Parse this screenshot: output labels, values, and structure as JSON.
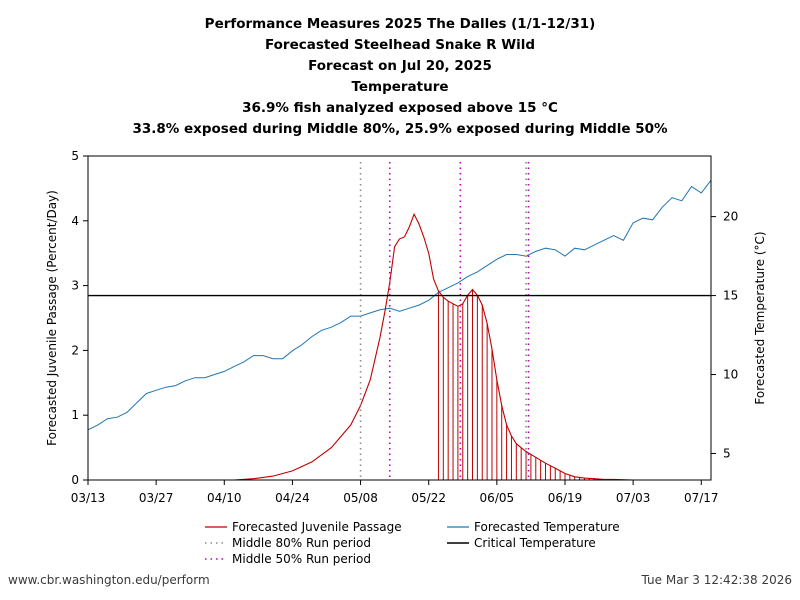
{
  "titles": {
    "line1": "Performance Measures 2025 The Dalles (1/1-12/31)",
    "line2": "Forecasted Steelhead Snake R Wild",
    "line3": "Forecast on Jul 20, 2025",
    "line4": "Temperature",
    "line5": "36.9% fish analyzed exposed above 15 °C",
    "line6": "33.8% exposed during Middle 80%, 25.9% exposed during Middle 50%"
  },
  "footer": {
    "left": "www.cbr.washington.edu/perform",
    "right": "Tue Mar  3 12:42:38 2026"
  },
  "legend": {
    "passage": "Forecasted Juvenile Passage",
    "temperature": "Forecasted Temperature",
    "mid80": "Middle 80% Run period",
    "critical": "Critical Temperature",
    "mid50": "Middle 50% Run period"
  },
  "colors": {
    "passage": "#c00000",
    "temperature": "#1f77b4",
    "mid80": "#8c8c8c",
    "mid50": "#c000c0",
    "critical": "#000000"
  },
  "chart_data": {
    "type": "line",
    "x_unit": "day of year 2025",
    "xlim": [
      72,
      200
    ],
    "x_ticks": [
      72,
      86,
      100,
      114,
      128,
      142,
      156,
      170,
      184,
      198
    ],
    "x_tick_labels": [
      "03/13",
      "03/27",
      "04/10",
      "04/24",
      "05/08",
      "05/22",
      "06/05",
      "06/19",
      "07/03",
      "07/17"
    ],
    "ylabel_left": "Forecasted Juvenile Passage (Percent/Day)",
    "ylim_left": [
      0,
      5
    ],
    "yticks_left": [
      0,
      1,
      2,
      3,
      4,
      5
    ],
    "ylabel_right": "Forecasted Temperature (°C)",
    "ylim_right": [
      3.32,
      23.84
    ],
    "yticks_right": [
      5,
      10,
      15,
      20
    ],
    "critical_temperature": 15,
    "mid80_period": [
      128,
      162
    ],
    "mid50_period": [
      134,
      160
    ],
    "mid80_x_marks": [
      128,
      162
    ],
    "mid50_x_marks": [
      134,
      148.5,
      162.5
    ],
    "legend_position": "bottom",
    "series": [
      {
        "name": "Forecasted Juvenile Passage",
        "axis": "left",
        "x": [
          102,
          106,
          110,
          114,
          118,
          122,
          126,
          128,
          130,
          132,
          133,
          134,
          135,
          136,
          137,
          138,
          139,
          140,
          141,
          142,
          143,
          144,
          145,
          146,
          147,
          148,
          149,
          150,
          151,
          152,
          153,
          154,
          155,
          156,
          157,
          158,
          159,
          160,
          162,
          164,
          166,
          168,
          170,
          172,
          174,
          176,
          178,
          180,
          184,
          188
        ],
        "values": [
          0.0,
          0.02,
          0.06,
          0.14,
          0.28,
          0.5,
          0.85,
          1.15,
          1.55,
          2.2,
          2.6,
          3.05,
          3.6,
          3.72,
          3.75,
          3.9,
          4.1,
          3.95,
          3.75,
          3.5,
          3.1,
          2.92,
          2.82,
          2.76,
          2.72,
          2.68,
          2.72,
          2.85,
          2.94,
          2.85,
          2.7,
          2.42,
          2.02,
          1.55,
          1.15,
          0.85,
          0.68,
          0.56,
          0.44,
          0.35,
          0.26,
          0.18,
          0.1,
          0.05,
          0.03,
          0.02,
          0.01,
          0.01,
          0.0,
          0.0
        ]
      },
      {
        "name": "Forecasted Temperature",
        "axis": "right",
        "x": [
          72,
          74,
          76,
          78,
          80,
          82,
          84,
          86,
          88,
          90,
          92,
          94,
          96,
          98,
          100,
          102,
          104,
          106,
          108,
          110,
          112,
          114,
          116,
          118,
          120,
          122,
          124,
          126,
          128,
          130,
          132,
          134,
          136,
          138,
          140,
          142,
          144,
          146,
          148,
          150,
          152,
          154,
          156,
          158,
          160,
          162,
          164,
          166,
          168,
          170,
          172,
          174,
          176,
          178,
          180,
          182,
          184,
          186,
          188,
          190,
          192,
          194,
          196,
          198,
          200
        ],
        "values": [
          6.5,
          6.8,
          7.2,
          7.3,
          7.6,
          8.2,
          8.8,
          9.0,
          9.2,
          9.3,
          9.6,
          9.8,
          9.8,
          10.0,
          10.2,
          10.5,
          10.8,
          11.2,
          11.2,
          11.0,
          11.0,
          11.5,
          11.9,
          12.4,
          12.8,
          13.0,
          13.3,
          13.7,
          13.7,
          13.9,
          14.1,
          14.2,
          14.0,
          14.2,
          14.4,
          14.7,
          15.2,
          15.5,
          15.8,
          16.2,
          16.5,
          16.9,
          17.3,
          17.6,
          17.6,
          17.5,
          17.8,
          18.0,
          17.9,
          17.5,
          18.0,
          17.9,
          18.2,
          18.5,
          18.8,
          18.5,
          19.6,
          19.9,
          19.8,
          20.6,
          21.2,
          21.0,
          21.9,
          21.5,
          22.3
        ]
      }
    ]
  }
}
